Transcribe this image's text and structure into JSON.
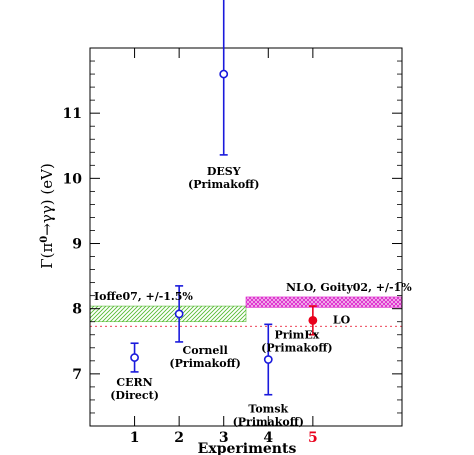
{
  "chart_data": {
    "type": "scatter",
    "xlabel": "Experiments",
    "ylabel_main": "Γ(π",
    "ylabel_sup": "0",
    "ylabel_rest": "→γγ) (eV)",
    "xlim": [
      0,
      7
    ],
    "ylim": [
      6.2,
      12.0
    ],
    "xticks": [
      {
        "value": 1,
        "label": "1",
        "color": "#000000"
      },
      {
        "value": 2,
        "label": "2",
        "color": "#000000"
      },
      {
        "value": 3,
        "label": "3",
        "color": "#000000"
      },
      {
        "value": 4,
        "label": "4",
        "color": "#000000"
      },
      {
        "value": 5,
        "label": "5",
        "color": "#e8001c"
      }
    ],
    "yticks": [
      {
        "value": 7,
        "label": "7"
      },
      {
        "value": 8,
        "label": "8"
      },
      {
        "value": 9,
        "label": "9"
      },
      {
        "value": 10,
        "label": "10"
      },
      {
        "value": 11,
        "label": "11"
      }
    ],
    "points": [
      {
        "x": 1,
        "y": 7.25,
        "err_low": 0.22,
        "err_high": 0.22,
        "color": "#1a1adc",
        "filled": false,
        "label": [
          "CERN",
          "(Direct)"
        ]
      },
      {
        "x": 2,
        "y": 7.92,
        "err_low": 0.43,
        "err_high": 0.43,
        "color": "#1a1adc",
        "filled": false,
        "label": [
          "Cornell",
          "(Primakoff)"
        ]
      },
      {
        "x": 3,
        "y": 11.6,
        "err_low": 1.24,
        "err_high": 1.24,
        "color": "#1a1adc",
        "filled": false,
        "label": [
          "DESY",
          "(Primakoff)"
        ]
      },
      {
        "x": 4,
        "y": 7.22,
        "err_low": 0.54,
        "err_high": 0.54,
        "color": "#1a1adc",
        "filled": false,
        "label": [
          "Tomsk",
          "(Primakoff)"
        ]
      },
      {
        "x": 5,
        "y": 7.82,
        "err_low": 0.22,
        "err_high": 0.22,
        "color": "#e8001c",
        "filled": true,
        "label": [
          "PrimEx",
          "(Primakoff)"
        ]
      }
    ],
    "bands": [
      {
        "label": "Ioffe07, +/-1.5%",
        "x0": 0,
        "x1": 3.5,
        "y0": 7.8,
        "y1": 8.04,
        "color": "#55bb33",
        "pattern": "diag"
      },
      {
        "label": "NLO, Goity02, +/-1%",
        "x0": 3.5,
        "x1": 7,
        "y0": 8.02,
        "y1": 8.18,
        "color": "#dd22cc",
        "pattern": "cross"
      }
    ],
    "lo_line": {
      "label": "LO",
      "y": 7.73,
      "color": "#e8001c"
    }
  }
}
